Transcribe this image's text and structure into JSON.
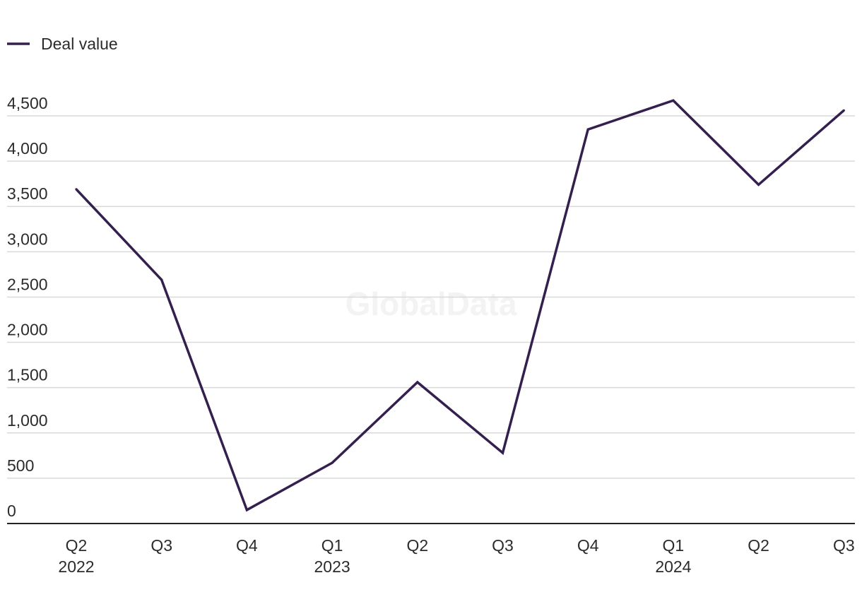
{
  "chart_data": {
    "type": "line",
    "title": "",
    "xlabel": "",
    "ylabel": "",
    "categories": [
      {
        "quarter": "Q2",
        "year": "2022"
      },
      {
        "quarter": "Q3",
        "year": ""
      },
      {
        "quarter": "Q4",
        "year": ""
      },
      {
        "quarter": "Q1",
        "year": "2023"
      },
      {
        "quarter": "Q2",
        "year": ""
      },
      {
        "quarter": "Q3",
        "year": ""
      },
      {
        "quarter": "Q4",
        "year": ""
      },
      {
        "quarter": "Q1",
        "year": "2024"
      },
      {
        "quarter": "Q2",
        "year": ""
      },
      {
        "quarter": "Q3",
        "year": ""
      }
    ],
    "series": [
      {
        "name": "Deal value",
        "color": "#33204f",
        "values": [
          3690,
          2690,
          150,
          670,
          1560,
          780,
          4350,
          4670,
          3740,
          4560
        ]
      }
    ],
    "ylim": [
      0,
      4500
    ],
    "yticks": [
      0,
      500,
      1000,
      1500,
      2000,
      2500,
      3000,
      3500,
      4000,
      4500
    ],
    "ytick_labels": [
      "0",
      "500",
      "1,000",
      "1,500",
      "2,000",
      "2,500",
      "3,000",
      "3,500",
      "4,000",
      "4,500"
    ],
    "grid": true,
    "legend_position": "top-left",
    "watermark": "GlobalData"
  }
}
